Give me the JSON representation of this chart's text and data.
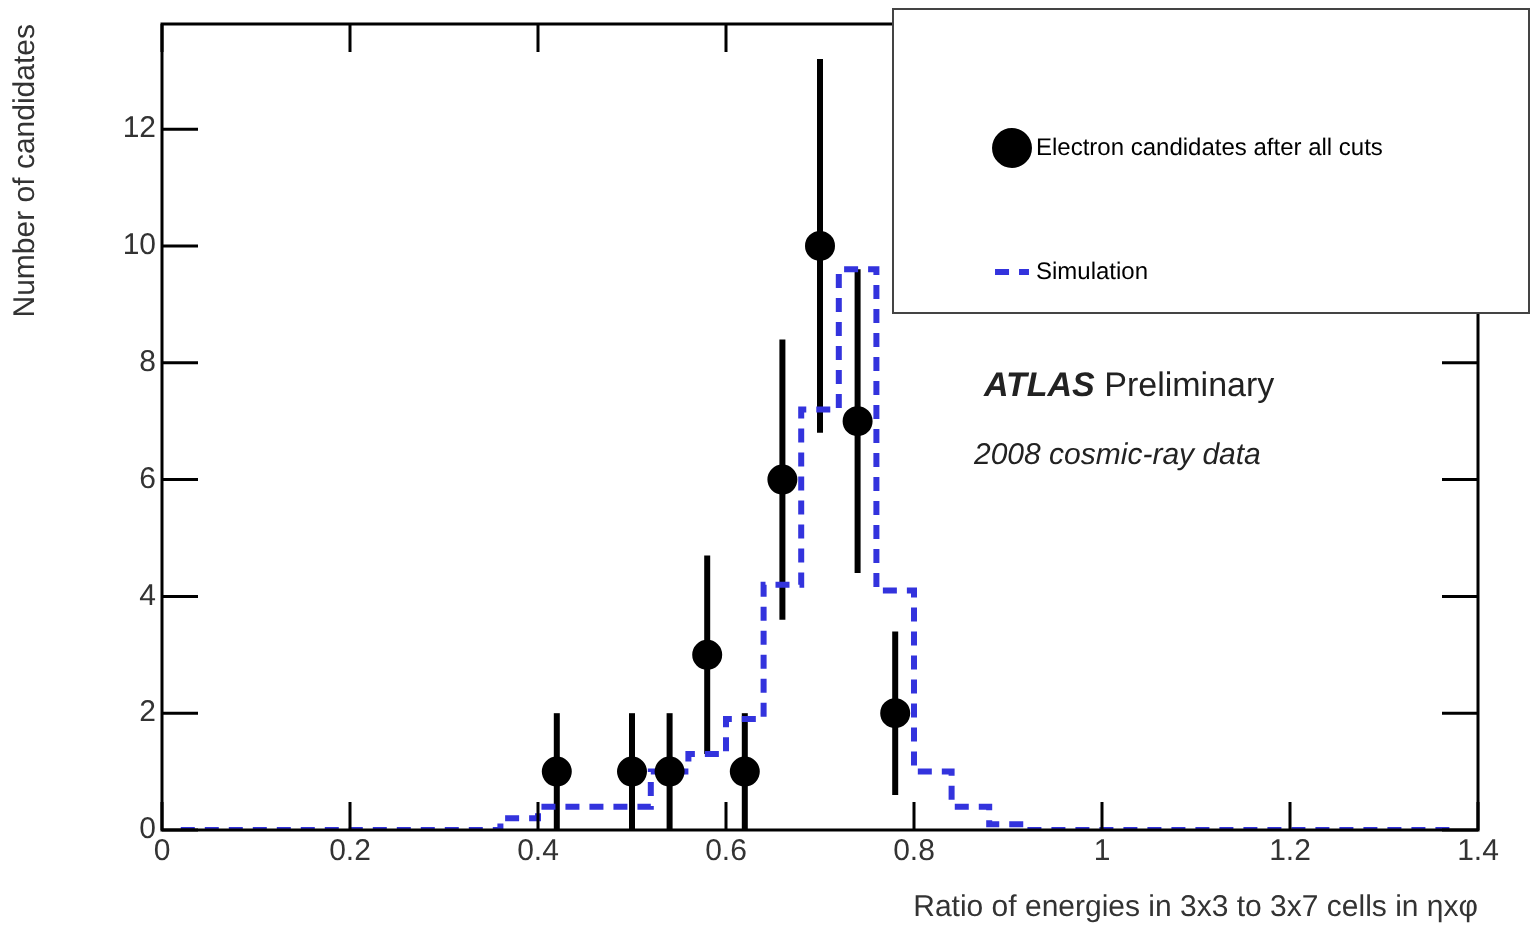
{
  "chart_data": {
    "type": "scatter",
    "xlabel": "Ratio of energies in 3x3 to 3x7 cells in ηxφ",
    "ylabel": "Number of candidates",
    "xlim": [
      0,
      1.4
    ],
    "xticks": [
      0,
      0.2,
      0.4,
      0.6,
      0.8,
      {
        "value": 1,
        "label": "1"
      },
      1.2,
      1.4
    ],
    "ylim": [
      0,
      13.8
    ],
    "yticks": [
      0,
      2,
      4,
      6,
      8,
      10,
      12
    ],
    "grid": false,
    "legend": "top right",
    "annotations": [
      "ATLAS Preliminary",
      "2008 cosmic-ray data"
    ],
    "series": [
      {
        "name": "Electron candidates after all cuts",
        "color": "#000000",
        "marker": "circle",
        "x": [
          0.42,
          0.5,
          0.54,
          0.58,
          0.62,
          0.66,
          0.7,
          0.74,
          0.78
        ],
        "values": [
          1,
          1,
          1,
          3,
          1,
          6,
          10,
          7,
          2
        ],
        "errors": [
          1,
          1,
          1,
          1.7,
          1,
          2.4,
          3.2,
          2.6,
          1.4
        ]
      },
      {
        "name": "Simulation",
        "type": "step",
        "color": "#3333dd",
        "line_style": "dashed",
        "x": [
          0.02,
          0.06,
          0.1,
          0.14,
          0.18,
          0.22,
          0.26,
          0.3,
          0.34,
          0.38,
          0.42,
          0.46,
          0.5,
          0.54,
          0.58,
          0.62,
          0.66,
          0.7,
          0.74,
          0.78,
          0.82,
          0.86,
          0.9,
          0.94,
          0.98,
          1.02,
          1.06,
          1.1,
          1.14,
          1.18,
          1.22,
          1.26,
          1.3,
          1.34,
          1.38
        ],
        "values": [
          0,
          0,
          0,
          0,
          0,
          0,
          0,
          0,
          0,
          0.2,
          0.4,
          0.4,
          0.4,
          1.0,
          1.3,
          1.9,
          4.2,
          7.2,
          9.6,
          4.1,
          1.0,
          0.4,
          0.1,
          0,
          0,
          0,
          0,
          0,
          0,
          0,
          0,
          0,
          0,
          0,
          0
        ]
      }
    ]
  }
}
